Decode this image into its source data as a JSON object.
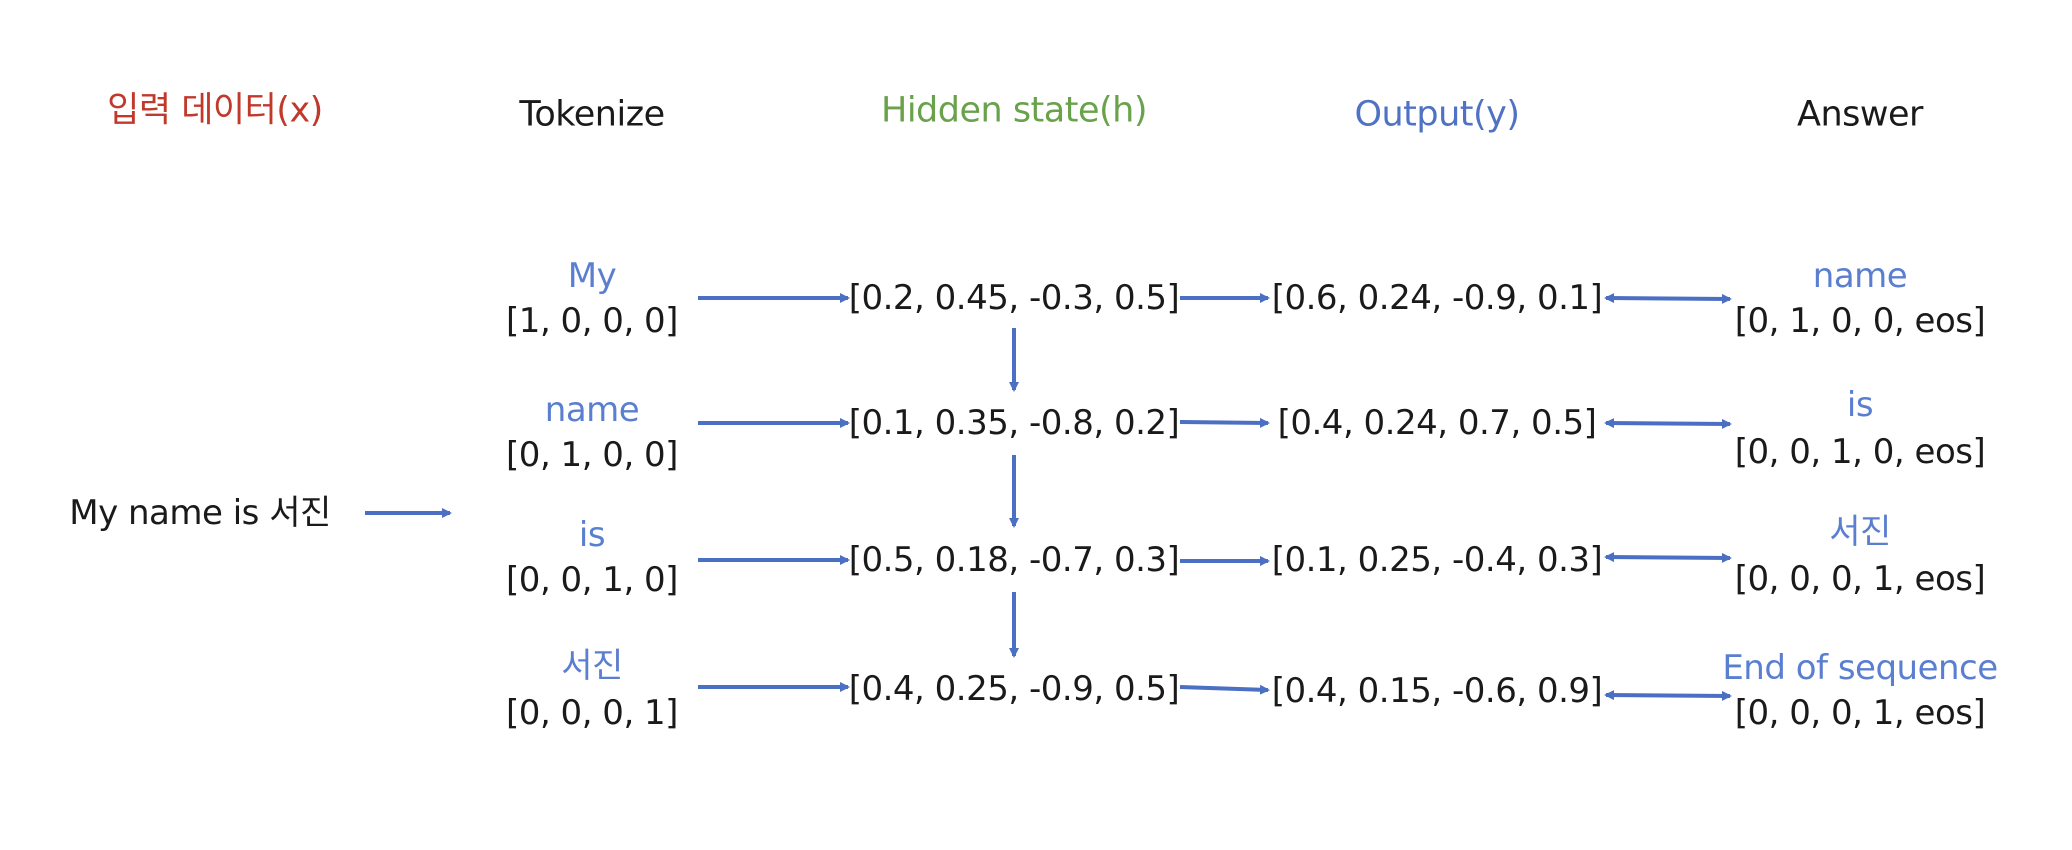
{
  "headers": {
    "input": "입력 데이터(x)",
    "tokenize": "Tokenize",
    "hidden": "Hidden state(h)",
    "output": "Output(y)",
    "answer": "Answer"
  },
  "input_sentence": "My name is 서진",
  "tokens": [
    {
      "label": "My",
      "vector": "[1, 0, 0, 0]"
    },
    {
      "label": "name",
      "vector": "[0, 1, 0, 0]"
    },
    {
      "label": "is",
      "vector": "[0, 0, 1, 0]"
    },
    {
      "label": "서진",
      "vector": "[0, 0, 0, 1]"
    }
  ],
  "hidden_states": [
    "[0.2, 0.45, -0.3, 0.5]",
    "[0.1, 0.35, -0.8, 0.2]",
    "[0.5, 0.18, -0.7, 0.3]",
    "[0.4, 0.25, -0.9, 0.5]"
  ],
  "outputs": [
    "[0.6, 0.24, -0.9, 0.1]",
    "[0.4, 0.24, 0.7, 0.5]",
    "[0.1, 0.25, -0.4, 0.3]",
    "[0.4, 0.15, -0.6, 0.9]"
  ],
  "answers": [
    {
      "label": "name",
      "vector": "[0, 1, 0, 0, eos]"
    },
    {
      "label": "is",
      "vector": "[0, 0, 1, 0, eos]"
    },
    {
      "label": "서진",
      "vector": "[0, 0, 0, 1, eos]"
    },
    {
      "label": "End of sequence",
      "vector": "[0, 0, 0, 1, eos]"
    }
  ],
  "colors": {
    "input_header": "#c0392b",
    "hidden_header": "#6aa24b",
    "output_header": "#4f72c4",
    "token_label": "#5b7fd0",
    "arrow": "#4a6fc3",
    "text": "#1a1a1a"
  }
}
